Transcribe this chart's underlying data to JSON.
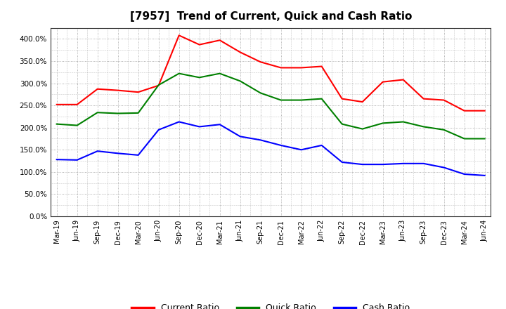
{
  "title": "[7957]  Trend of Current, Quick and Cash Ratio",
  "labels": [
    "Mar-19",
    "Jun-19",
    "Sep-19",
    "Dec-19",
    "Mar-20",
    "Jun-20",
    "Sep-20",
    "Dec-20",
    "Mar-21",
    "Jun-21",
    "Sep-21",
    "Dec-21",
    "Mar-22",
    "Jun-22",
    "Sep-22",
    "Dec-22",
    "Mar-23",
    "Jun-23",
    "Sep-23",
    "Dec-23",
    "Mar-24",
    "Jun-24"
  ],
  "current_ratio": [
    2.52,
    2.52,
    2.87,
    2.84,
    2.8,
    2.95,
    4.08,
    3.87,
    3.97,
    3.7,
    3.48,
    3.35,
    3.35,
    3.38,
    2.65,
    2.58,
    3.03,
    3.08,
    2.65,
    2.62,
    2.38,
    2.38
  ],
  "quick_ratio": [
    2.08,
    2.05,
    2.34,
    2.32,
    2.33,
    2.96,
    3.22,
    3.13,
    3.22,
    3.05,
    2.78,
    2.62,
    2.62,
    2.65,
    2.08,
    1.97,
    2.1,
    2.13,
    2.02,
    1.95,
    1.75,
    1.75
  ],
  "cash_ratio": [
    1.28,
    1.27,
    1.47,
    1.42,
    1.38,
    1.95,
    2.13,
    2.02,
    2.07,
    1.8,
    1.72,
    1.6,
    1.5,
    1.6,
    1.22,
    1.17,
    1.17,
    1.19,
    1.19,
    1.1,
    0.95,
    0.92
  ],
  "current_color": "#ff0000",
  "quick_color": "#008000",
  "cash_color": "#0000ff",
  "background_color": "#ffffff",
  "grid_color": "#999999",
  "ylim": [
    0.0,
    4.25
  ],
  "yticks": [
    0.0,
    0.5,
    1.0,
    1.5,
    2.0,
    2.5,
    3.0,
    3.5,
    4.0
  ]
}
